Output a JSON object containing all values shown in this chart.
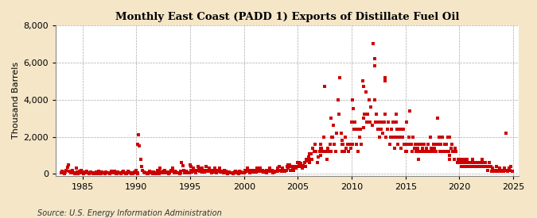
{
  "title": "Monthly East Coast (PADD 1) Exports of Distillate Fuel Oil",
  "ylabel": "Thousand Barrels",
  "source": "Source: U.S. Energy Information Administration",
  "fig_background_color": "#F5E6C8",
  "plot_background_color": "#FFFFFF",
  "marker_color": "#CC0000",
  "grid_color": "#AAAAAA",
  "xlim": [
    1982.5,
    2025.5
  ],
  "ylim": [
    -100,
    8000
  ],
  "yticks": [
    0,
    2000,
    4000,
    6000,
    8000
  ],
  "xticks": [
    1985,
    1990,
    1995,
    2000,
    2005,
    2010,
    2015,
    2020,
    2025
  ],
  "data": [
    [
      1983.0,
      50
    ],
    [
      1983.1,
      150
    ],
    [
      1983.2,
      80
    ],
    [
      1983.3,
      30
    ],
    [
      1983.4,
      100
    ],
    [
      1983.5,
      200
    ],
    [
      1983.6,
      350
    ],
    [
      1983.7,
      500
    ],
    [
      1983.8,
      150
    ],
    [
      1983.9,
      80
    ],
    [
      1983.1,
      100
    ],
    [
      1983.11,
      50
    ],
    [
      1984.0,
      100
    ],
    [
      1984.1,
      200
    ],
    [
      1984.2,
      80
    ],
    [
      1984.3,
      30
    ],
    [
      1984.4,
      300
    ],
    [
      1984.5,
      100
    ],
    [
      1984.6,
      30
    ],
    [
      1984.7,
      150
    ],
    [
      1984.8,
      80
    ],
    [
      1984.9,
      200
    ],
    [
      1984.1,
      100
    ],
    [
      1984.11,
      50
    ],
    [
      1985.0,
      80
    ],
    [
      1985.1,
      30
    ],
    [
      1985.2,
      100
    ],
    [
      1985.3,
      50
    ],
    [
      1985.4,
      150
    ],
    [
      1985.5,
      80
    ],
    [
      1985.6,
      30
    ],
    [
      1985.7,
      80
    ],
    [
      1985.8,
      100
    ],
    [
      1985.9,
      50
    ],
    [
      1985.1,
      80
    ],
    [
      1985.11,
      30
    ],
    [
      1986.0,
      30
    ],
    [
      1986.1,
      80
    ],
    [
      1986.2,
      50
    ],
    [
      1986.3,
      100
    ],
    [
      1986.4,
      30
    ],
    [
      1986.5,
      150
    ],
    [
      1986.6,
      80
    ],
    [
      1986.7,
      30
    ],
    [
      1986.8,
      100
    ],
    [
      1986.9,
      50
    ],
    [
      1986.1,
      80
    ],
    [
      1986.11,
      30
    ],
    [
      1987.0,
      80
    ],
    [
      1987.1,
      30
    ],
    [
      1987.2,
      100
    ],
    [
      1987.3,
      50
    ],
    [
      1987.4,
      80
    ],
    [
      1987.5,
      30
    ],
    [
      1987.6,
      80
    ],
    [
      1987.7,
      150
    ],
    [
      1987.8,
      100
    ],
    [
      1987.9,
      80
    ],
    [
      1987.1,
      50
    ],
    [
      1987.11,
      30
    ],
    [
      1988.0,
      150
    ],
    [
      1988.1,
      80
    ],
    [
      1988.2,
      30
    ],
    [
      1988.3,
      100
    ],
    [
      1988.4,
      50
    ],
    [
      1988.5,
      80
    ],
    [
      1988.6,
      30
    ],
    [
      1988.7,
      100
    ],
    [
      1988.8,
      150
    ],
    [
      1988.9,
      80
    ],
    [
      1988.1,
      50
    ],
    [
      1988.11,
      30
    ],
    [
      1989.0,
      30
    ],
    [
      1989.1,
      80
    ],
    [
      1989.2,
      150
    ],
    [
      1989.3,
      100
    ],
    [
      1989.4,
      80
    ],
    [
      1989.5,
      30
    ],
    [
      1989.6,
      80
    ],
    [
      1989.7,
      30
    ],
    [
      1989.8,
      100
    ],
    [
      1989.9,
      80
    ],
    [
      1989.1,
      50
    ],
    [
      1989.11,
      30
    ],
    [
      1990.0,
      200
    ],
    [
      1990.1,
      1600
    ],
    [
      1990.2,
      2100
    ],
    [
      1990.3,
      1500
    ],
    [
      1990.4,
      800
    ],
    [
      1990.5,
      400
    ],
    [
      1990.6,
      200
    ],
    [
      1990.7,
      100
    ],
    [
      1990.8,
      50
    ],
    [
      1990.9,
      80
    ],
    [
      1990.1,
      50
    ],
    [
      1990.11,
      30
    ],
    [
      1991.0,
      30
    ],
    [
      1991.1,
      80
    ],
    [
      1991.2,
      150
    ],
    [
      1991.3,
      100
    ],
    [
      1991.4,
      80
    ],
    [
      1991.5,
      30
    ],
    [
      1991.6,
      100
    ],
    [
      1991.7,
      80
    ],
    [
      1991.8,
      30
    ],
    [
      1991.9,
      50
    ],
    [
      1991.1,
      80
    ],
    [
      1991.11,
      30
    ],
    [
      1992.0,
      200
    ],
    [
      1992.1,
      150
    ],
    [
      1992.2,
      300
    ],
    [
      1992.3,
      100
    ],
    [
      1992.4,
      80
    ],
    [
      1992.5,
      150
    ],
    [
      1992.6,
      200
    ],
    [
      1992.7,
      80
    ],
    [
      1992.8,
      50
    ],
    [
      1992.9,
      100
    ],
    [
      1992.1,
      80
    ],
    [
      1992.11,
      30
    ],
    [
      1993.0,
      30
    ],
    [
      1993.1,
      80
    ],
    [
      1993.2,
      200
    ],
    [
      1993.3,
      150
    ],
    [
      1993.4,
      300
    ],
    [
      1993.5,
      80
    ],
    [
      1993.6,
      150
    ],
    [
      1993.7,
      100
    ],
    [
      1993.8,
      50
    ],
    [
      1993.9,
      80
    ],
    [
      1993.1,
      100
    ],
    [
      1993.11,
      50
    ],
    [
      1994.0,
      30
    ],
    [
      1994.1,
      150
    ],
    [
      1994.2,
      600
    ],
    [
      1994.3,
      450
    ],
    [
      1994.4,
      200
    ],
    [
      1994.5,
      80
    ],
    [
      1994.6,
      150
    ],
    [
      1994.7,
      100
    ],
    [
      1994.8,
      50
    ],
    [
      1994.9,
      80
    ],
    [
      1994.1,
      100
    ],
    [
      1994.11,
      50
    ],
    [
      1995.0,
      500
    ],
    [
      1995.1,
      400
    ],
    [
      1995.2,
      200
    ],
    [
      1995.3,
      300
    ],
    [
      1995.4,
      150
    ],
    [
      1995.5,
      80
    ],
    [
      1995.6,
      200
    ],
    [
      1995.7,
      400
    ],
    [
      1995.8,
      300
    ],
    [
      1995.9,
      150
    ],
    [
      1995.1,
      200
    ],
    [
      1995.11,
      100
    ],
    [
      1996.0,
      200
    ],
    [
      1996.1,
      300
    ],
    [
      1996.2,
      150
    ],
    [
      1996.3,
      100
    ],
    [
      1996.4,
      200
    ],
    [
      1996.5,
      400
    ],
    [
      1996.6,
      150
    ],
    [
      1996.7,
      200
    ],
    [
      1996.8,
      300
    ],
    [
      1996.9,
      150
    ],
    [
      1996.1,
      100
    ],
    [
      1996.11,
      150
    ],
    [
      1997.0,
      80
    ],
    [
      1997.1,
      200
    ],
    [
      1997.2,
      150
    ],
    [
      1997.3,
      300
    ],
    [
      1997.4,
      80
    ],
    [
      1997.5,
      200
    ],
    [
      1997.6,
      150
    ],
    [
      1997.7,
      300
    ],
    [
      1997.8,
      100
    ],
    [
      1997.9,
      150
    ],
    [
      1997.1,
      200
    ],
    [
      1997.11,
      100
    ],
    [
      1998.0,
      150
    ],
    [
      1998.1,
      80
    ],
    [
      1998.2,
      200
    ],
    [
      1998.3,
      150
    ],
    [
      1998.4,
      80
    ],
    [
      1998.5,
      30
    ],
    [
      1998.6,
      100
    ],
    [
      1998.7,
      80
    ],
    [
      1998.8,
      50
    ],
    [
      1998.9,
      80
    ],
    [
      1998.1,
      100
    ],
    [
      1998.11,
      50
    ],
    [
      1999.0,
      30
    ],
    [
      1999.1,
      80
    ],
    [
      1999.2,
      150
    ],
    [
      1999.3,
      100
    ],
    [
      1999.4,
      80
    ],
    [
      1999.5,
      30
    ],
    [
      1999.6,
      150
    ],
    [
      1999.7,
      100
    ],
    [
      1999.8,
      50
    ],
    [
      1999.9,
      80
    ],
    [
      1999.1,
      100
    ],
    [
      1999.11,
      50
    ],
    [
      2000.0,
      80
    ],
    [
      2000.1,
      200
    ],
    [
      2000.2,
      150
    ],
    [
      2000.3,
      300
    ],
    [
      2000.4,
      150
    ],
    [
      2000.5,
      80
    ],
    [
      2000.6,
      200
    ],
    [
      2000.7,
      150
    ],
    [
      2000.8,
      100
    ],
    [
      2000.9,
      200
    ],
    [
      2000.1,
      150
    ],
    [
      2000.11,
      100
    ],
    [
      2001.0,
      100
    ],
    [
      2001.1,
      200
    ],
    [
      2001.2,
      300
    ],
    [
      2001.3,
      150
    ],
    [
      2001.4,
      200
    ],
    [
      2001.5,
      300
    ],
    [
      2001.6,
      150
    ],
    [
      2001.7,
      200
    ],
    [
      2001.8,
      100
    ],
    [
      2001.9,
      150
    ],
    [
      2001.1,
      200
    ],
    [
      2001.11,
      100
    ],
    [
      2002.0,
      150
    ],
    [
      2002.1,
      80
    ],
    [
      2002.2,
      200
    ],
    [
      2002.3,
      150
    ],
    [
      2002.4,
      300
    ],
    [
      2002.5,
      150
    ],
    [
      2002.6,
      200
    ],
    [
      2002.7,
      80
    ],
    [
      2002.8,
      100
    ],
    [
      2002.9,
      150
    ],
    [
      2002.1,
      200
    ],
    [
      2002.11,
      100
    ],
    [
      2003.0,
      150
    ],
    [
      2003.1,
      300
    ],
    [
      2003.2,
      200
    ],
    [
      2003.3,
      400
    ],
    [
      2003.4,
      200
    ],
    [
      2003.5,
      150
    ],
    [
      2003.6,
      300
    ],
    [
      2003.7,
      200
    ],
    [
      2003.8,
      150
    ],
    [
      2003.9,
      200
    ],
    [
      2003.1,
      300
    ],
    [
      2003.11,
      150
    ],
    [
      2004.0,
      400
    ],
    [
      2004.1,
      300
    ],
    [
      2004.2,
      500
    ],
    [
      2004.3,
      200
    ],
    [
      2004.4,
      400
    ],
    [
      2004.5,
      300
    ],
    [
      2004.6,
      200
    ],
    [
      2004.7,
      400
    ],
    [
      2004.8,
      300
    ],
    [
      2004.9,
      400
    ],
    [
      2004.1,
      500
    ],
    [
      2004.11,
      300
    ],
    [
      2005.0,
      600
    ],
    [
      2005.1,
      450
    ],
    [
      2005.2,
      400
    ],
    [
      2005.3,
      550
    ],
    [
      2005.4,
      300
    ],
    [
      2005.5,
      450
    ],
    [
      2005.6,
      600
    ],
    [
      2005.7,
      400
    ],
    [
      2005.8,
      800
    ],
    [
      2005.9,
      700
    ],
    [
      2005.1,
      600
    ],
    [
      2005.11,
      500
    ],
    [
      2006.0,
      900
    ],
    [
      2006.1,
      600
    ],
    [
      2006.2,
      1100
    ],
    [
      2006.3,
      800
    ],
    [
      2006.4,
      1400
    ],
    [
      2006.5,
      1200
    ],
    [
      2006.6,
      1600
    ],
    [
      2006.7,
      1200
    ],
    [
      2006.8,
      600
    ],
    [
      2006.9,
      900
    ],
    [
      2006.1,
      1100
    ],
    [
      2006.11,
      800
    ],
    [
      2007.0,
      1200
    ],
    [
      2007.1,
      1600
    ],
    [
      2007.2,
      1400
    ],
    [
      2007.3,
      1200
    ],
    [
      2007.4,
      2000
    ],
    [
      2007.5,
      4700
    ],
    [
      2007.6,
      1200
    ],
    [
      2007.7,
      800
    ],
    [
      2007.8,
      1400
    ],
    [
      2007.9,
      1200
    ],
    [
      2007.1,
      1000
    ],
    [
      2007.11,
      1400
    ],
    [
      2008.0,
      1600
    ],
    [
      2008.1,
      1200
    ],
    [
      2008.2,
      2000
    ],
    [
      2008.3,
      2600
    ],
    [
      2008.4,
      1600
    ],
    [
      2008.5,
      1200
    ],
    [
      2008.6,
      2200
    ],
    [
      2008.7,
      4000
    ],
    [
      2008.8,
      3200
    ],
    [
      2008.9,
      5200
    ],
    [
      2008.1,
      3000
    ],
    [
      2008.11,
      2000
    ],
    [
      2009.0,
      2200
    ],
    [
      2009.1,
      1200
    ],
    [
      2009.2,
      1600
    ],
    [
      2009.3,
      1200
    ],
    [
      2009.4,
      2000
    ],
    [
      2009.5,
      1400
    ],
    [
      2009.6,
      1600
    ],
    [
      2009.7,
      1200
    ],
    [
      2009.8,
      1600
    ],
    [
      2009.9,
      1400
    ],
    [
      2009.1,
      1800
    ],
    [
      2009.11,
      1600
    ],
    [
      2010.0,
      2800
    ],
    [
      2010.1,
      1600
    ],
    [
      2010.2,
      2400
    ],
    [
      2010.3,
      2800
    ],
    [
      2010.4,
      1600
    ],
    [
      2010.5,
      2400
    ],
    [
      2010.6,
      1200
    ],
    [
      2010.7,
      2000
    ],
    [
      2010.8,
      2400
    ],
    [
      2010.9,
      1600
    ],
    [
      2010.1,
      4000
    ],
    [
      2010.11,
      3500
    ],
    [
      2011.0,
      5000
    ],
    [
      2011.1,
      4700
    ],
    [
      2011.2,
      3200
    ],
    [
      2011.3,
      4400
    ],
    [
      2011.4,
      2800
    ],
    [
      2011.5,
      3200
    ],
    [
      2011.6,
      4000
    ],
    [
      2011.7,
      2800
    ],
    [
      2011.8,
      3600
    ],
    [
      2011.9,
      2600
    ],
    [
      2011.1,
      3000
    ],
    [
      2011.11,
      2500
    ],
    [
      2012.0,
      7000
    ],
    [
      2012.1,
      4000
    ],
    [
      2012.2,
      2800
    ],
    [
      2012.3,
      3200
    ],
    [
      2012.4,
      2400
    ],
    [
      2012.5,
      2800
    ],
    [
      2012.6,
      2000
    ],
    [
      2012.7,
      2400
    ],
    [
      2012.8,
      2800
    ],
    [
      2012.9,
      2200
    ],
    [
      2012.1,
      6200
    ],
    [
      2012.11,
      5800
    ],
    [
      2013.0,
      2800
    ],
    [
      2013.1,
      3200
    ],
    [
      2013.2,
      2000
    ],
    [
      2013.3,
      2400
    ],
    [
      2013.4,
      2800
    ],
    [
      2013.5,
      1600
    ],
    [
      2013.6,
      2000
    ],
    [
      2013.7,
      2400
    ],
    [
      2013.8,
      2800
    ],
    [
      2013.9,
      2000
    ],
    [
      2013.1,
      5000
    ],
    [
      2013.11,
      5200
    ],
    [
      2014.0,
      1400
    ],
    [
      2014.1,
      2000
    ],
    [
      2014.2,
      2400
    ],
    [
      2014.3,
      1600
    ],
    [
      2014.4,
      2000
    ],
    [
      2014.5,
      2400
    ],
    [
      2014.6,
      1400
    ],
    [
      2014.7,
      2000
    ],
    [
      2014.8,
      2400
    ],
    [
      2014.9,
      1600
    ],
    [
      2014.1,
      3200
    ],
    [
      2014.11,
      2800
    ],
    [
      2015.0,
      1200
    ],
    [
      2015.1,
      2800
    ],
    [
      2015.2,
      1600
    ],
    [
      2015.3,
      2000
    ],
    [
      2015.4,
      3400
    ],
    [
      2015.5,
      1600
    ],
    [
      2015.6,
      1200
    ],
    [
      2015.7,
      2000
    ],
    [
      2015.8,
      1400
    ],
    [
      2015.9,
      1600
    ],
    [
      2015.1,
      1200
    ],
    [
      2015.11,
      1600
    ],
    [
      2016.0,
      1200
    ],
    [
      2016.1,
      1600
    ],
    [
      2016.2,
      800
    ],
    [
      2016.3,
      1200
    ],
    [
      2016.4,
      1600
    ],
    [
      2016.5,
      1200
    ],
    [
      2016.6,
      1400
    ],
    [
      2016.7,
      1600
    ],
    [
      2016.8,
      1200
    ],
    [
      2016.9,
      1400
    ],
    [
      2016.1,
      1200
    ],
    [
      2016.11,
      1400
    ],
    [
      2017.0,
      1200
    ],
    [
      2017.1,
      1600
    ],
    [
      2017.2,
      1200
    ],
    [
      2017.3,
      2000
    ],
    [
      2017.4,
      1400
    ],
    [
      2017.5,
      1200
    ],
    [
      2017.6,
      1600
    ],
    [
      2017.7,
      1400
    ],
    [
      2017.8,
      1200
    ],
    [
      2017.9,
      1600
    ],
    [
      2017.1,
      1200
    ],
    [
      2017.11,
      1600
    ],
    [
      2018.0,
      3000
    ],
    [
      2018.1,
      2000
    ],
    [
      2018.2,
      1200
    ],
    [
      2018.3,
      1600
    ],
    [
      2018.4,
      2000
    ],
    [
      2018.5,
      1200
    ],
    [
      2018.6,
      1600
    ],
    [
      2018.7,
      1200
    ],
    [
      2018.8,
      1600
    ],
    [
      2018.9,
      2000
    ],
    [
      2018.1,
      1600
    ],
    [
      2018.11,
      2000
    ],
    [
      2019.0,
      1200
    ],
    [
      2019.1,
      2000
    ],
    [
      2019.2,
      1400
    ],
    [
      2019.3,
      1600
    ],
    [
      2019.4,
      1200
    ],
    [
      2019.5,
      800
    ],
    [
      2019.6,
      1400
    ],
    [
      2019.7,
      1200
    ],
    [
      2019.8,
      600
    ],
    [
      2019.9,
      800
    ],
    [
      2019.1,
      1000
    ],
    [
      2019.11,
      800
    ],
    [
      2020.0,
      800
    ],
    [
      2020.1,
      600
    ],
    [
      2020.2,
      400
    ],
    [
      2020.3,
      600
    ],
    [
      2020.4,
      800
    ],
    [
      2020.5,
      400
    ],
    [
      2020.6,
      600
    ],
    [
      2020.7,
      800
    ],
    [
      2020.8,
      400
    ],
    [
      2020.9,
      600
    ],
    [
      2020.1,
      800
    ],
    [
      2020.11,
      600
    ],
    [
      2021.0,
      400
    ],
    [
      2021.1,
      600
    ],
    [
      2021.2,
      800
    ],
    [
      2021.3,
      400
    ],
    [
      2021.4,
      600
    ],
    [
      2021.5,
      400
    ],
    [
      2021.6,
      600
    ],
    [
      2021.7,
      400
    ],
    [
      2021.8,
      400
    ],
    [
      2021.9,
      600
    ],
    [
      2021.1,
      400
    ],
    [
      2021.11,
      600
    ],
    [
      2022.0,
      400
    ],
    [
      2022.1,
      600
    ],
    [
      2022.2,
      400
    ],
    [
      2022.3,
      400
    ],
    [
      2022.4,
      600
    ],
    [
      2022.5,
      400
    ],
    [
      2022.6,
      200
    ],
    [
      2022.7,
      400
    ],
    [
      2022.8,
      600
    ],
    [
      2022.9,
      400
    ],
    [
      2022.1,
      800
    ],
    [
      2022.11,
      600
    ],
    [
      2023.0,
      150
    ],
    [
      2023.1,
      300
    ],
    [
      2023.2,
      200
    ],
    [
      2023.3,
      150
    ],
    [
      2023.4,
      400
    ],
    [
      2023.5,
      200
    ],
    [
      2023.6,
      150
    ],
    [
      2023.7,
      300
    ],
    [
      2023.8,
      200
    ],
    [
      2023.9,
      150
    ],
    [
      2023.1,
      200
    ],
    [
      2023.11,
      150
    ],
    [
      2024.0,
      200
    ],
    [
      2024.1,
      150
    ],
    [
      2024.2,
      300
    ],
    [
      2024.3,
      2200
    ],
    [
      2024.4,
      200
    ],
    [
      2024.5,
      150
    ],
    [
      2024.6,
      300
    ],
    [
      2024.7,
      200
    ],
    [
      2024.8,
      400
    ],
    [
      2024.9,
      150
    ]
  ]
}
